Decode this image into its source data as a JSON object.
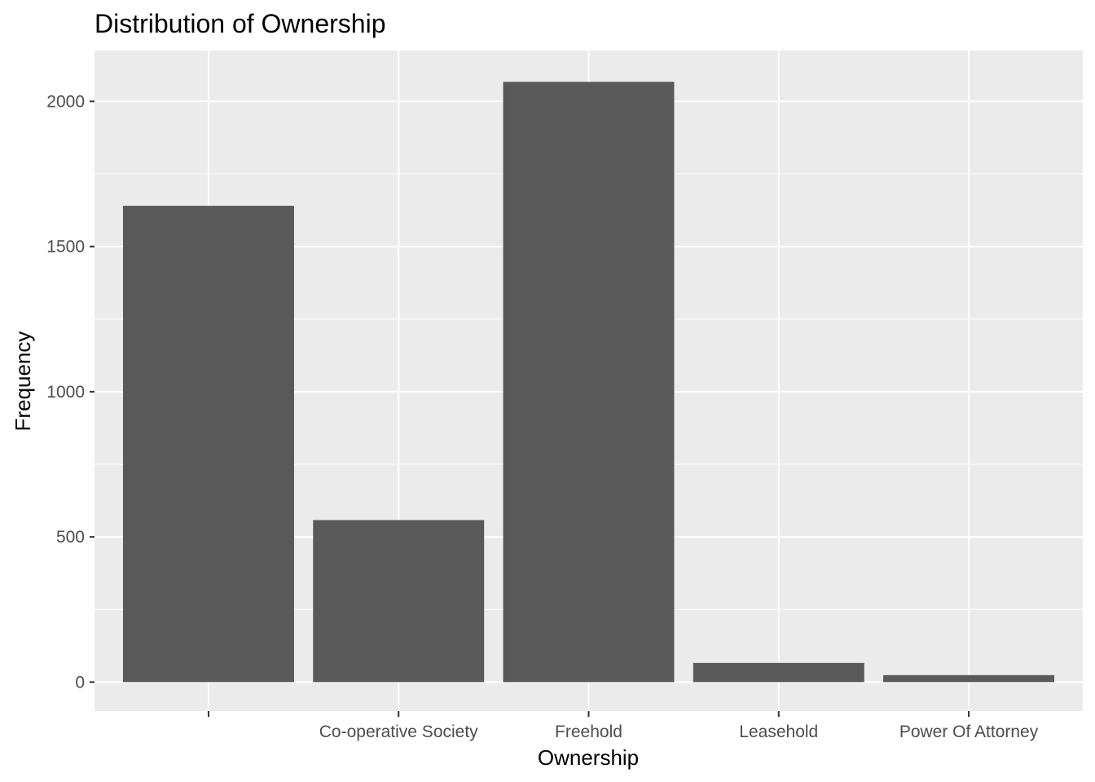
{
  "chart_data": {
    "type": "bar",
    "title": "Distribution of Ownership",
    "xlabel": "Ownership",
    "ylabel": "Frequency",
    "categories": [
      "",
      "Co-operative Society",
      "Freehold",
      "Leasehold",
      "Power Of Attorney"
    ],
    "values": [
      1640,
      558,
      2067,
      66,
      24
    ],
    "ylim": [
      -100,
      2175
    ],
    "yticks": [
      0,
      500,
      1000,
      1500,
      2000
    ],
    "grid": true,
    "legend": "none",
    "colors": {
      "bar": "#595959",
      "panel": "#ebebeb",
      "grid": "#ffffff",
      "tick": "#333333"
    }
  }
}
